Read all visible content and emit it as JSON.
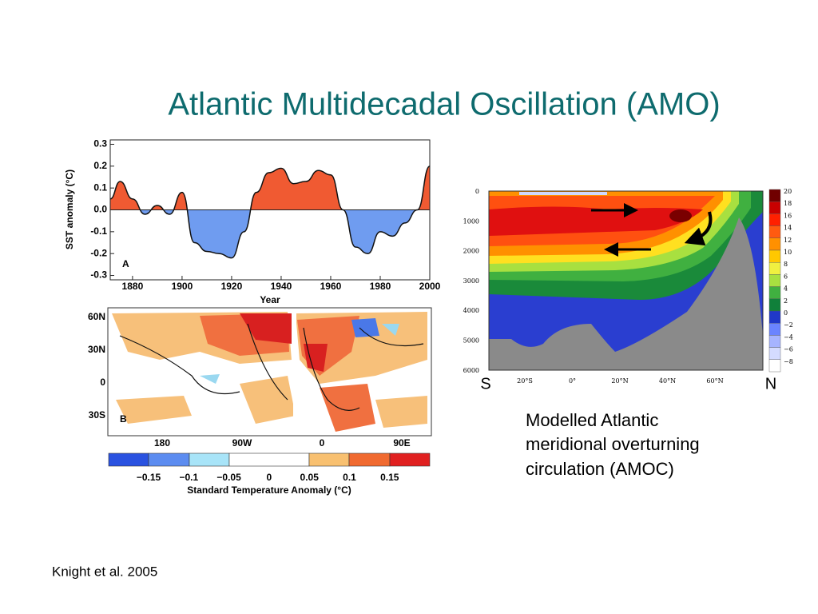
{
  "title": "Atlantic Multidecadal Oscillation (AMO)",
  "chart_data": {
    "type": "area",
    "panel_label": "A",
    "ylabel": "SST anomaly (°C)",
    "xlabel": "Year",
    "x": [
      1871,
      1875,
      1880,
      1885,
      1890,
      1895,
      1900,
      1905,
      1910,
      1915,
      1920,
      1925,
      1930,
      1935,
      1940,
      1945,
      1950,
      1955,
      1960,
      1965,
      1970,
      1975,
      1980,
      1985,
      1990,
      1995,
      2000
    ],
    "values": [
      0.05,
      0.13,
      0.05,
      -0.02,
      0.02,
      -0.02,
      0.08,
      -0.15,
      -0.19,
      -0.2,
      -0.22,
      -0.1,
      0.08,
      0.17,
      0.19,
      0.12,
      0.13,
      0.18,
      0.16,
      0.0,
      -0.17,
      -0.2,
      -0.1,
      -0.12,
      -0.06,
      0.0,
      0.2
    ],
    "pos_color": "#f05a32",
    "neg_color": "#6f9cf0",
    "xlim": [
      1871,
      2000
    ],
    "ylim": [
      -0.32,
      0.32
    ],
    "xticks": [
      1880,
      1900,
      1920,
      1940,
      1960,
      1980,
      2000
    ],
    "yticks": [
      0.3,
      0.2,
      0.1,
      {
        "value": 0,
        "label": "0.0"
      },
      -0.1,
      -0.2,
      -0.3
    ]
  },
  "map": {
    "panel_label": "B",
    "lat_labels": [
      "60N",
      "30N",
      "0",
      "30S"
    ],
    "lon_labels": [
      "180",
      "90W",
      "0",
      "90E"
    ],
    "colorbar_ticks": [
      "−0.15",
      "−0.1",
      "−0.05",
      "0",
      "0.05",
      "0.1",
      "0.15"
    ],
    "colorbar_label": "Standard Temperature Anomaly (°C)"
  },
  "amoc": {
    "depth_ticks": [
      "0",
      "1000",
      "2000",
      "3000",
      "4000",
      "5000",
      "6000"
    ],
    "lat_ticks": [
      "20°S",
      "0°",
      "20°N",
      "40°N",
      "60°N"
    ],
    "colorbar_ticks": [
      "20",
      "18",
      "16",
      "14",
      "12",
      "10",
      "8",
      "6",
      "4",
      "2",
      "0",
      "−2",
      "−4",
      "−6",
      "−8"
    ],
    "south": "S",
    "north": "N",
    "caption": [
      "Modelled Atlantic",
      "meridional overturning",
      "circulation (AMOC)"
    ]
  },
  "citation": "Knight et al. 2005"
}
